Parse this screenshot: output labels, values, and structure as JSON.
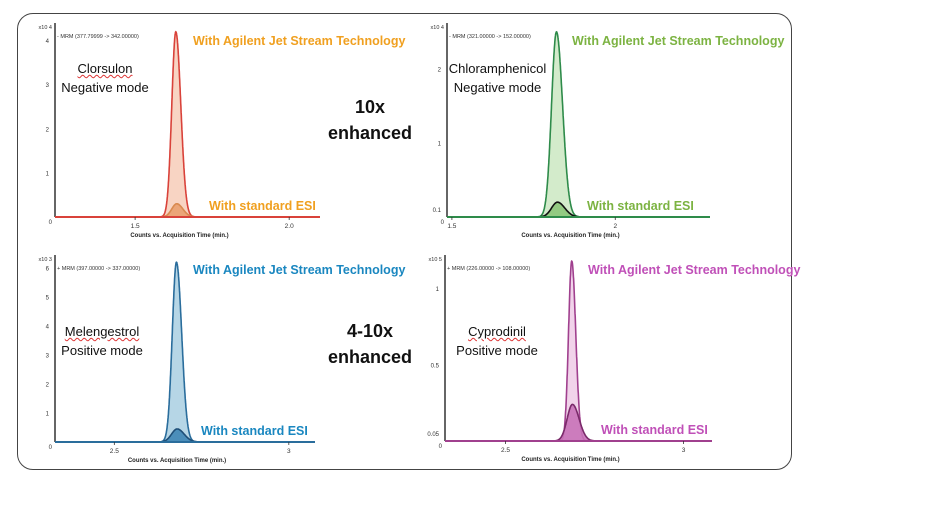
{
  "summaries": [
    {
      "line1": "10x",
      "line2": "enhanced"
    },
    {
      "line1": "4-10x",
      "line2": "enhanced"
    }
  ],
  "chart_data": [
    {
      "type": "line",
      "compound": "Clorsulon",
      "mode": "Negative mode",
      "transition": "- MRM (377.79999 -> 342.00000)",
      "y_multiplier": "x10 4",
      "xlabel": "Counts vs. Acquisition Time (min.)",
      "x_ticks": [
        "1.5",
        "2.0"
      ],
      "x_tick_values": [
        1.5,
        2.0
      ],
      "y_ticks": [
        "0",
        "1",
        "2",
        "3",
        "4"
      ],
      "y_tick_values": [
        0,
        1,
        2,
        3,
        4
      ],
      "xlim": [
        1.24,
        2.1
      ],
      "ylim": [
        0,
        4.4
      ],
      "colors": {
        "line": "#d9423a",
        "fill": "#f7cdb9",
        "std_line": "#d98a50",
        "std_fill": "#e9a070",
        "annotation": "#f0a020"
      },
      "series": [
        {
          "name": "With Agilent Jet Stream Technology",
          "peak_rt": 1.632,
          "peak_height": 4.2,
          "sigma": 0.013
        },
        {
          "name": "With standard ESI",
          "peak_rt": 1.635,
          "peak_height": 0.3,
          "sigma": 0.016
        }
      ]
    },
    {
      "type": "line",
      "compound": "Chloramphenicol",
      "mode": "Negative mode",
      "transition": "- MRM (321.00000 -> 152.00000)",
      "y_multiplier": "x10 4",
      "xlabel": "Counts vs. Acquisition Time (min.)",
      "x_ticks": [
        "1.5",
        "2"
      ],
      "x_tick_values": [
        1.5,
        2.0
      ],
      "y_ticks": [
        "0",
        "0.1",
        "1",
        "2"
      ],
      "y_tick_values": [
        0,
        0.1,
        1,
        2
      ],
      "xlim": [
        1.485,
        2.29
      ],
      "ylim": [
        0,
        2.62
      ],
      "colors": {
        "line": "#2e8b4a",
        "fill": "#cbe8c2",
        "std_line": "#111111",
        "std_fill": "#8cc77a",
        "annotation": "#7cb342"
      },
      "series": [
        {
          "name": "With Agilent Jet Stream Technology",
          "peak_rt": 1.82,
          "peak_height": 2.5,
          "sigma": 0.015
        },
        {
          "name": "With standard ESI",
          "peak_rt": 1.823,
          "peak_height": 0.2,
          "sigma": 0.018
        }
      ]
    },
    {
      "type": "line",
      "compound": "Melengestrol",
      "mode": "Positive mode",
      "transition": "+ MRM (397.00000 -> 337.00000)",
      "y_multiplier": "x10 3",
      "xlabel": "Counts vs. Acquisition Time (min.)",
      "x_ticks": [
        "2.5",
        "3"
      ],
      "x_tick_values": [
        2.5,
        3.0
      ],
      "y_ticks": [
        "0",
        "1",
        "2",
        "3",
        "4",
        "5",
        "6"
      ],
      "y_tick_values": [
        0,
        1,
        2,
        3,
        4,
        5,
        6
      ],
      "xlim": [
        2.33,
        3.075
      ],
      "ylim": [
        0,
        6.45
      ],
      "colors": {
        "line": "#2a6d9c",
        "fill": "#a9cfe2",
        "std_line": "#1f4f78",
        "std_fill": "#3f86b5",
        "annotation": "#1a87c0"
      },
      "series": [
        {
          "name": "With Agilent Jet Stream Technology",
          "peak_rt": 2.678,
          "peak_height": 6.2,
          "sigma": 0.012
        },
        {
          "name": "With standard ESI",
          "peak_rt": 2.68,
          "peak_height": 0.45,
          "sigma": 0.016
        }
      ]
    },
    {
      "type": "line",
      "compound": "Cyprodinil",
      "mode": "Positive mode",
      "transition": "+ MRM (226.00000 -> 108.00000)",
      "y_multiplier": "x10 5",
      "xlabel": "Counts vs. Acquisition Time (min.)",
      "x_ticks": [
        "2.5",
        "3"
      ],
      "x_tick_values": [
        2.5,
        3.0
      ],
      "y_ticks": [
        "0",
        "0.05",
        "0.5",
        "1"
      ],
      "y_tick_values": [
        0,
        0.05,
        0.5,
        1
      ],
      "xlim": [
        2.33,
        3.08
      ],
      "ylim": [
        0,
        1.22
      ],
      "colors": {
        "line": "#a0408e",
        "fill": "#eecbe6",
        "std_line": "#7a2a6a",
        "std_fill": "#c872b8",
        "annotation": "#c050b8"
      },
      "series": [
        {
          "name": "With Agilent Jet Stream Technology",
          "peak_rt": 2.686,
          "peak_height": 1.18,
          "sigma": 0.009
        },
        {
          "name": "With standard ESI",
          "peak_rt": 2.688,
          "peak_height": 0.24,
          "sigma": 0.015
        }
      ]
    }
  ]
}
